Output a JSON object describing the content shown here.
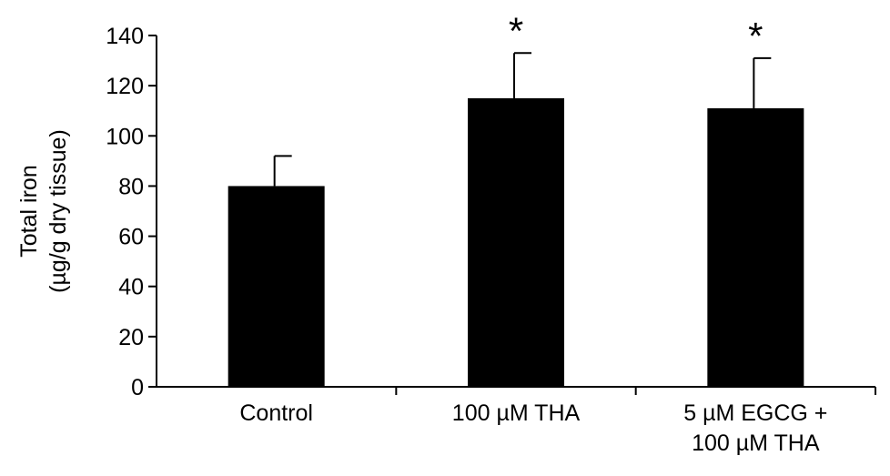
{
  "chart_data": {
    "type": "bar",
    "ylabel_lines": [
      "Total iron",
      "(µg/g dry tissue)"
    ],
    "xlabel": "",
    "ylim": [
      0,
      140
    ],
    "yticks": [
      0,
      20,
      40,
      60,
      80,
      100,
      120,
      140
    ],
    "categories": [
      [
        "Control"
      ],
      [
        "100 µM THA"
      ],
      [
        "5 µM EGCG +",
        "100 µM THA"
      ]
    ],
    "values": [
      80,
      115,
      111
    ],
    "errors": [
      12,
      18,
      20
    ],
    "significance": [
      "",
      "*",
      "*"
    ],
    "colors": {
      "bar": "#000000",
      "axis": "#000000"
    },
    "grid": false,
    "legend": "none"
  }
}
